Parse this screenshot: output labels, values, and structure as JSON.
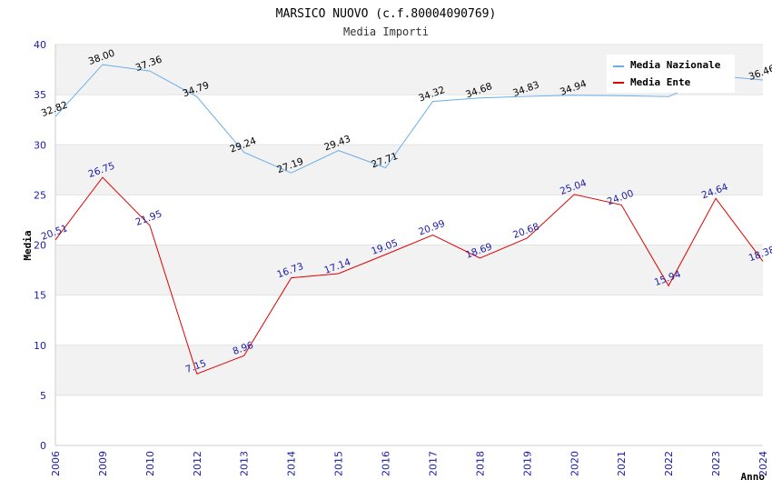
{
  "chart_data": {
    "type": "line",
    "title": "MARSICO NUOVO (c.f.80004090769)",
    "subtitle": "Media Importi",
    "xlabel": "Anno",
    "ylabel": "Media",
    "ylim": [
      0,
      40
    ],
    "yticks": [
      0,
      5,
      10,
      15,
      20,
      25,
      30,
      35,
      40
    ],
    "categories": [
      "2006",
      "2009",
      "2010",
      "2012",
      "2013",
      "2014",
      "2015",
      "2016",
      "2017",
      "2018",
      "2019",
      "2020",
      "2021",
      "2022",
      "2023",
      "2024"
    ],
    "legend_position": "top-right",
    "grid": true,
    "series": [
      {
        "name": "Media Nazionale",
        "color": "#6aaee8",
        "values": [
          32.82,
          38.0,
          37.36,
          34.79,
          29.24,
          27.19,
          29.43,
          27.71,
          34.32,
          34.68,
          34.83,
          34.94,
          34.9,
          34.8,
          36.9,
          36.46
        ],
        "labels": [
          "32.82",
          "38.00",
          "37.36",
          "34.79",
          "29.24",
          "27.19",
          "29.43",
          "27.71",
          "34.32",
          "34.68",
          "34.83",
          "34.94",
          "",
          "",
          "",
          "36.46"
        ]
      },
      {
        "name": "Media Ente",
        "color": "#e00000",
        "values": [
          20.51,
          26.75,
          21.95,
          7.15,
          8.96,
          16.73,
          17.14,
          19.05,
          20.99,
          18.69,
          20.68,
          25.04,
          24.0,
          15.94,
          24.64,
          18.38
        ],
        "labels": [
          "20.51",
          "26.75",
          "21.95",
          "7.15",
          "8.96",
          "16.73",
          "17.14",
          "19.05",
          "20.99",
          "18.69",
          "20.68",
          "25.04",
          "24.00",
          "15.94",
          "24.64",
          "18.38"
        ]
      }
    ]
  }
}
